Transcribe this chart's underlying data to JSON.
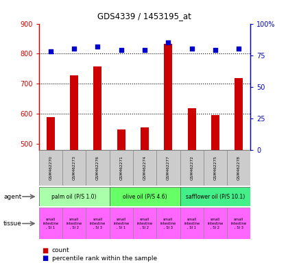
{
  "title": "GDS4339 / 1453195_at",
  "samples": [
    "GSM462270",
    "GSM462273",
    "GSM462276",
    "GSM462271",
    "GSM462274",
    "GSM462277",
    "GSM462272",
    "GSM462275",
    "GSM462278"
  ],
  "counts": [
    590,
    727,
    757,
    547,
    556,
    832,
    619,
    596,
    719
  ],
  "percentiles": [
    78,
    80,
    82,
    79,
    79,
    85,
    80,
    79,
    80
  ],
  "ylim_left": [
    480,
    900
  ],
  "ylim_right": [
    0,
    100
  ],
  "yticks_left": [
    500,
    600,
    700,
    800,
    900
  ],
  "yticks_right": [
    0,
    25,
    50,
    75,
    100
  ],
  "ytick_right_labels": [
    "0",
    "25",
    "50",
    "75",
    "100%"
  ],
  "bar_color": "#cc0000",
  "dot_color": "#0000cc",
  "agent_groups": [
    {
      "label": "palm oil (P/S 1.0)",
      "color": "#aaffaa",
      "span": [
        0,
        3
      ]
    },
    {
      "label": "olive oil (P/S 4.6)",
      "color": "#66ff66",
      "span": [
        3,
        6
      ]
    },
    {
      "label": "safflower oil (P/S 10.1)",
      "color": "#44ee88",
      "span": [
        6,
        9
      ]
    }
  ],
  "tissue_labels": [
    "small\nintestine\n, SI 1",
    "small\nintestine\n, SI 2",
    "small\nintestine\n, SI 3",
    "small\nintestine\n, SI 1",
    "small\nintestine\n, SI 2",
    "small\nintestine\n, SI 3",
    "small\nintestine\n, SI 1",
    "small\nintestine\n, SI 2",
    "small\nintestine\n, SI 3"
  ],
  "tissue_color": "#ff66ff",
  "sample_box_color": "#cccccc",
  "background_color": "#ffffff"
}
